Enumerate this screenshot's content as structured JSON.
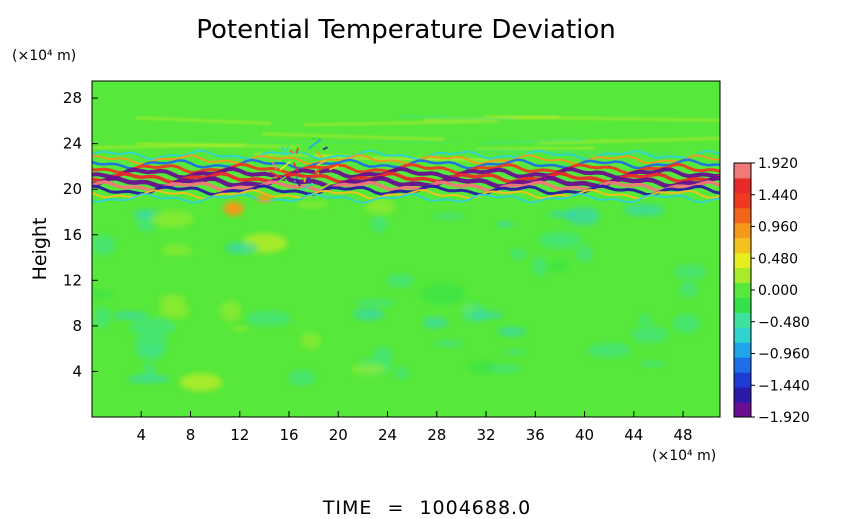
{
  "chart_data": {
    "type": "heatmap",
    "title": "Potential Temperature Deviation",
    "xlabel": "",
    "ylabel": "Height",
    "x_unit_label": "(×10⁴ m)",
    "y_unit_label": "(×10⁴ m)",
    "xlim": [
      0,
      51
    ],
    "ylim": [
      0,
      29.5
    ],
    "x_ticks": [
      4,
      8,
      12,
      16,
      20,
      24,
      28,
      32,
      36,
      40,
      44,
      48
    ],
    "y_ticks": [
      4,
      8,
      12,
      16,
      20,
      24,
      28
    ],
    "colorbar": {
      "tick_labels": [
        "1.920",
        "1.440",
        "0.960",
        "0.480",
        "0.000",
        "−0.480",
        "−0.960",
        "−1.440",
        "−1.920"
      ],
      "tick_values": [
        1.92,
        1.44,
        0.96,
        0.48,
        0.0,
        -0.48,
        -0.96,
        -1.44,
        -1.92
      ],
      "colors_low_to_high": [
        "#6a0d91",
        "#2a1aa8",
        "#1f3bd6",
        "#1e6ee8",
        "#1ea6e8",
        "#2fd3cf",
        "#3ce39a",
        "#33e24a",
        "#56e83a",
        "#a6ec2a",
        "#e6ee22",
        "#f3c21c",
        "#f59a18",
        "#f3661a",
        "#ee3a20",
        "#ea2a2a",
        "#f07a7a"
      ]
    },
    "background_value": 0.0,
    "annotations": [
      {
        "feature": "strong alternating positive/negative stratified band",
        "height_range": [
          19.8,
          22
        ],
        "x_range": [
          0,
          51
        ]
      },
      {
        "feature": "wave disturbance burst",
        "x": 17,
        "height": 22.5
      },
      {
        "feature": "warm blob",
        "x": 11.5,
        "height": 18.2
      },
      {
        "feature": "weak negative eddies",
        "height_range": [
          8,
          19
        ],
        "x_range": [
          0,
          51
        ]
      }
    ]
  },
  "time_label": "TIME",
  "time_eq": "=",
  "time_value": "1004688.0"
}
